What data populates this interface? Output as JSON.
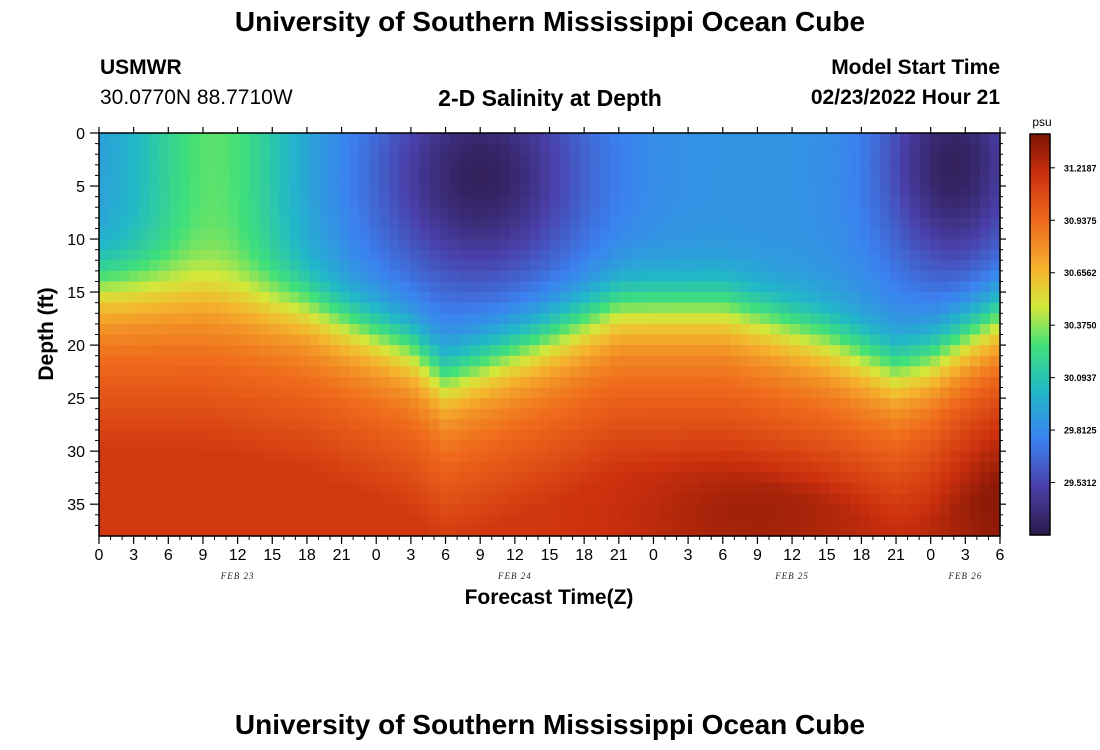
{
  "header": {
    "title": "University of Southern Mississippi Ocean Cube",
    "station_id": "USMWR",
    "coords": "30.0770N  88.7710W",
    "plot_title": "2-D Salinity at Depth",
    "model_start_label": "Model Start Time",
    "model_start_value": "02/23/2022 Hour 21"
  },
  "footer": {
    "title": "University of Southern Mississippi Ocean Cube"
  },
  "chart_data": {
    "type": "heatmap",
    "title": "2-D Salinity at Depth",
    "xlabel": "Forecast Time(Z)",
    "ylabel": "Depth (ft)",
    "x_tick_labels": [
      "0",
      "3",
      "6",
      "9",
      "12",
      "15",
      "18",
      "21",
      "0",
      "3",
      "6",
      "9",
      "12",
      "15",
      "18",
      "21",
      "0",
      "3",
      "6",
      "9",
      "12",
      "15",
      "18",
      "21",
      "0",
      "3",
      "6"
    ],
    "date_labels": [
      {
        "label": "FEB 23",
        "hour": 12
      },
      {
        "label": "FEB 24",
        "hour": 36
      },
      {
        "label": "FEB 25",
        "hour": 60
      },
      {
        "label": "FEB 26",
        "hour": 75
      }
    ],
    "xlim_hours": [
      0,
      78
    ],
    "y_ticks": [
      0,
      5,
      10,
      15,
      20,
      25,
      30,
      35
    ],
    "y_tick_labels": [
      "0",
      "5",
      "10",
      "15",
      "20",
      "25",
      "30",
      "35"
    ],
    "ylim_ft": [
      0,
      38
    ],
    "y_inverted": true,
    "colorbar": {
      "unit": "psu",
      "min": 29.25,
      "max": 31.4,
      "tick_values": [
        31.21875,
        30.9375,
        30.65625,
        30.375,
        30.09375,
        29.8125,
        29.53125
      ],
      "tick_labels": [
        "31.2187",
        "30.9375",
        "30.6562",
        "30.3750",
        "30.0937",
        "29.8125",
        "29.5312"
      ]
    },
    "field_description_psu": {
      "fresh_surface_minima": [
        {
          "hour": 33,
          "depth_ft": 4,
          "salinity": 29.3
        },
        {
          "hour": 74,
          "depth_ft": 3,
          "salinity": 29.3
        }
      ],
      "halocline_depth_ft_by_hour": [
        [
          0,
          14
        ],
        [
          9,
          14
        ],
        [
          18,
          16
        ],
        [
          27,
          20
        ],
        [
          30,
          23
        ],
        [
          39,
          19
        ],
        [
          45,
          16
        ],
        [
          54,
          16
        ],
        [
          63,
          19
        ],
        [
          69,
          22
        ],
        [
          72,
          21
        ],
        [
          78,
          17
        ]
      ],
      "bottom_salinity": 31.15
    }
  }
}
